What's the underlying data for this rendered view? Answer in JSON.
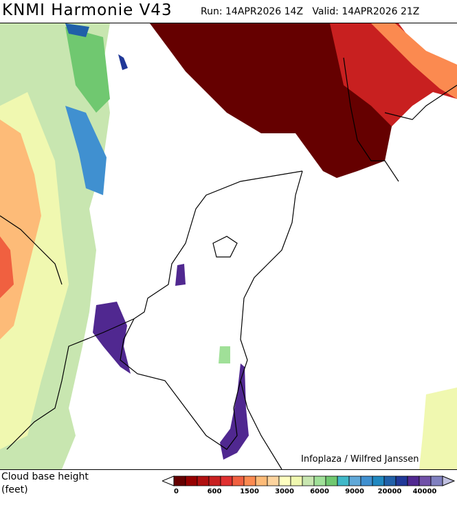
{
  "header": {
    "title": "KNMI Harmonie V43",
    "run_label": "Run: 14APR2026 14Z",
    "valid_label": "Valid: 14APR2026 21Z"
  },
  "map": {
    "credit": "Infoplaza / Wilfred Janssen"
  },
  "legend": {
    "label_line1": "Cloud base height",
    "label_line2": "(feet)",
    "tick_labels": [
      "0",
      "600",
      "1500",
      "3000",
      "6000",
      "9000",
      "20000",
      "40000"
    ],
    "colors": [
      "#650000",
      "#960000",
      "#b01010",
      "#c82020",
      "#e03030",
      "#f06040",
      "#fb8a50",
      "#fdbb78",
      "#fdd49e",
      "#ffffc0",
      "#f0f8b0",
      "#c8e6b0",
      "#a0e098",
      "#70c870",
      "#40b8c8",
      "#60a8d8",
      "#4090d0",
      "#2088c0",
      "#2060a8",
      "#203898",
      "#502890",
      "#7050a8",
      "#8080c0"
    ],
    "over_color": "#c0c0e0",
    "under_color": "#ffffff"
  }
}
